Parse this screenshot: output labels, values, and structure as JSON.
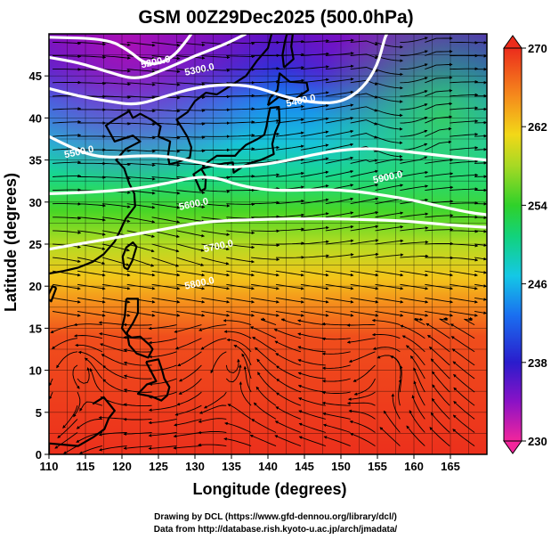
{
  "chart_data": {
    "type": "heatmap",
    "title": "GSM 00Z29Dec2025 (500.0hPa)",
    "xlabel": "Longitude (degrees)",
    "ylabel": "Latitude  (degrees)",
    "xlim": [
      110,
      170
    ],
    "ylim": [
      0,
      50
    ],
    "x_ticks": [
      110,
      115,
      120,
      125,
      130,
      135,
      140,
      145,
      150,
      155,
      160,
      165
    ],
    "y_ticks": [
      0,
      5,
      10,
      15,
      20,
      25,
      30,
      35,
      40,
      45
    ],
    "colorbar": {
      "min": 230,
      "max": 270,
      "ticks": [
        230,
        238,
        246,
        254,
        262,
        270
      ],
      "placement": "right"
    },
    "shaded_field_description_values": {
      "temperature_by_latitude": [
        {
          "lat": 0,
          "value": 267
        },
        {
          "lat": 10,
          "value": 267
        },
        {
          "lat": 17,
          "value": 266
        },
        {
          "lat": 22,
          "value": 262
        },
        {
          "lat": 27,
          "value": 258
        },
        {
          "lat": 32,
          "value": 254
        },
        {
          "lat": 36,
          "value": 250
        },
        {
          "lat": 40,
          "value": 246
        },
        {
          "lat": 44,
          "value": 241
        },
        {
          "lat": 48,
          "value": 236
        }
      ]
    },
    "contours": [
      {
        "value": 5200,
        "label": "5200.0",
        "points": [
          [
            110,
            49.6
          ],
          [
            118,
            49.4
          ],
          [
            121,
            48.0
          ],
          [
            123,
            46.5
          ],
          [
            125,
            46.4
          ],
          [
            127,
            47.3
          ],
          [
            128.5,
            48.8
          ],
          [
            129.5,
            50
          ]
        ]
      },
      {
        "value": 5300,
        "label": "5300.0",
        "points": [
          [
            110,
            47.2
          ],
          [
            114,
            46.6
          ],
          [
            118,
            45.5
          ],
          [
            122,
            44.5
          ],
          [
            126,
            45.8
          ],
          [
            130,
            47.4
          ],
          [
            134,
            48.7
          ],
          [
            137,
            50
          ]
        ]
      },
      {
        "value": 5400,
        "label": "5400.0",
        "points": [
          [
            110,
            43.5
          ],
          [
            114,
            42.6
          ],
          [
            118,
            42.0
          ],
          [
            122,
            41.5
          ],
          [
            126,
            42.6
          ],
          [
            130,
            43.6
          ],
          [
            134,
            44.0
          ],
          [
            138,
            43.8
          ],
          [
            142,
            42.6
          ],
          [
            146,
            41.8
          ],
          [
            150,
            41.8
          ],
          [
            153,
            43.5
          ],
          [
            155,
            46.2
          ],
          [
            156,
            49.5
          ],
          [
            156.3,
            50
          ]
        ]
      },
      {
        "value": 5500,
        "label": "5500.0",
        "points": [
          [
            110,
            37.8
          ],
          [
            113,
            36.5
          ],
          [
            116,
            35.5
          ],
          [
            119,
            35.3
          ],
          [
            122,
            35.5
          ],
          [
            126,
            35.5
          ],
          [
            130,
            34.8
          ],
          [
            134,
            34.1
          ],
          [
            138,
            34.3
          ],
          [
            142,
            34.8
          ],
          [
            146,
            35.6
          ],
          [
            150,
            36.2
          ],
          [
            154,
            36.4
          ],
          [
            158,
            36.1
          ],
          [
            161,
            35.8
          ],
          [
            166,
            35.3
          ],
          [
            170,
            35.0
          ]
        ]
      },
      {
        "value": 5600,
        "label": "5600.0",
        "points": [
          [
            110,
            31.0
          ],
          [
            114,
            31.1
          ],
          [
            118,
            31.3
          ],
          [
            122,
            31.6
          ],
          [
            126,
            32.2
          ],
          [
            130,
            33.0
          ],
          [
            133,
            32.9
          ],
          [
            136,
            32.0
          ],
          [
            140,
            31.4
          ],
          [
            144,
            31.4
          ],
          [
            148,
            31.5
          ],
          [
            152,
            31.3
          ],
          [
            156,
            30.8
          ],
          [
            160,
            30.2
          ],
          [
            164,
            29.4
          ],
          [
            168,
            28.7
          ],
          [
            170,
            28.5
          ]
        ]
      },
      {
        "value": 5700,
        "label": "5700.0",
        "points": [
          [
            110,
            24.4
          ],
          [
            114,
            25.0
          ],
          [
            118,
            25.6
          ],
          [
            122,
            26.2
          ],
          [
            126,
            26.8
          ],
          [
            130,
            27.5
          ],
          [
            134,
            27.8
          ],
          [
            138,
            27.9
          ],
          [
            142,
            28.0
          ],
          [
            146,
            28.0
          ],
          [
            150,
            28.0
          ],
          [
            154,
            27.9
          ],
          [
            158,
            27.8
          ],
          [
            162,
            27.5
          ],
          [
            166,
            27.2
          ],
          [
            170,
            27.0
          ]
        ]
      }
    ],
    "contour_labels": [
      {
        "text": "5200.0",
        "lon": 124.7,
        "lat": 46.3
      },
      {
        "text": "5300.0",
        "lon": 130.7,
        "lat": 45.4
      },
      {
        "text": "5400.0",
        "lon": 144.6,
        "lat": 41.7
      },
      {
        "text": "5500.0",
        "lon": 114.2,
        "lat": 35.6
      },
      {
        "text": "5600.0",
        "lon": 129.9,
        "lat": 29.4
      },
      {
        "text": "5700.0",
        "lon": 133.3,
        "lat": 24.4
      },
      {
        "text": "5800.0",
        "lon": 130.7,
        "lat": 20.0
      },
      {
        "text": "5900.0",
        "lon": 156.5,
        "lat": 32.6
      }
    ],
    "vector_field": "wind streamlines (qualitative)",
    "grid": true
  },
  "footer": {
    "line1": "Drawing by DCL (https://www.gfd-dennou.org/library/dcl/)",
    "line2": "Data from http://database.rish.kyoto-u.ac.jp/arch/jmadata/"
  }
}
